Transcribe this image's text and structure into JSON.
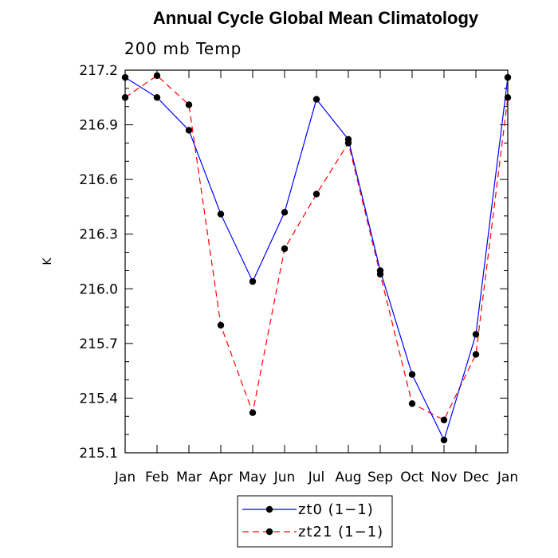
{
  "chart_data": {
    "type": "line",
    "title": "Annual Cycle Global Mean Climatology",
    "subtitle": "200 mb Temp",
    "ylabel": "K",
    "xlabel": "",
    "categories": [
      "Jan",
      "Feb",
      "Mar",
      "Apr",
      "May",
      "Jun",
      "Jul",
      "Aug",
      "Sep",
      "Oct",
      "Nov",
      "Dec",
      "Jan"
    ],
    "ylim": [
      215.1,
      217.2
    ],
    "yticks": [
      215.1,
      215.4,
      215.7,
      216.0,
      216.3,
      216.6,
      216.9,
      217.2
    ],
    "ytick_labels": [
      "215.1",
      "215.4",
      "215.7",
      "216.0",
      "216.3",
      "216.6",
      "216.9",
      "217.2"
    ],
    "grid": false,
    "legend_position": "bottom-center",
    "series": [
      {
        "name": "zt0 (1−1)",
        "color": "#0000ff",
        "style": "solid",
        "marker": "dot",
        "values": [
          217.16,
          217.05,
          216.87,
          216.41,
          216.04,
          216.42,
          217.04,
          216.82,
          216.1,
          215.53,
          215.17,
          215.75,
          217.16
        ]
      },
      {
        "name": "zt21 (1−1)",
        "color": "#ff0000",
        "style": "dashed",
        "marker": "dot",
        "values": [
          217.05,
          217.17,
          217.01,
          215.8,
          215.32,
          216.22,
          216.52,
          216.8,
          216.08,
          215.37,
          215.28,
          215.64,
          217.05
        ]
      }
    ]
  }
}
